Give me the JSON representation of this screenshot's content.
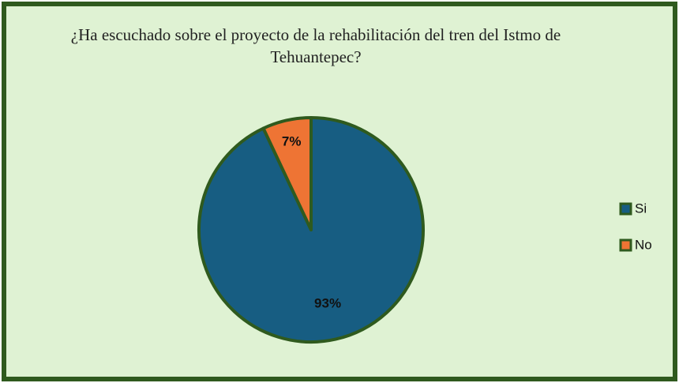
{
  "chart_data": {
    "type": "pie",
    "title": "¿Ha escuchado sobre el proyecto de la rehabilitación del tren del Istmo de Tehuantepec?",
    "categories": [
      "Si",
      "No"
    ],
    "values": [
      93,
      7
    ],
    "value_labels": [
      "93%",
      "7%"
    ],
    "colors": [
      "#175d82",
      "#ee7434"
    ],
    "legend": "right"
  }
}
